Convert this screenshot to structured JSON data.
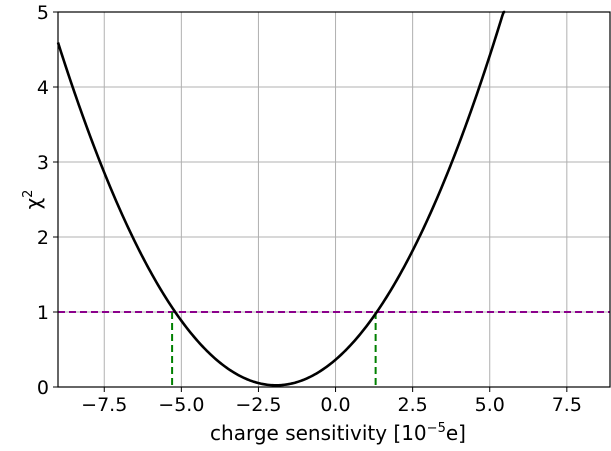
{
  "chart_data": {
    "type": "line",
    "xlabel": {
      "prefix": "charge sensitivity [10",
      "exponent": "−5",
      "suffix": "e]"
    },
    "ylabel": {
      "base": "χ",
      "exponent": "2"
    },
    "xlim": [
      -9.0,
      8.9
    ],
    "ylim": [
      0,
      5
    ],
    "x_ticks": [
      -7.5,
      -5.0,
      -2.5,
      0.0,
      2.5,
      5.0,
      7.5
    ],
    "x_tick_labels": [
      "−7.5",
      "−5.0",
      "−2.5",
      "0.0",
      "2.5",
      "5.0",
      "7.5"
    ],
    "y_ticks": [
      0,
      1,
      2,
      3,
      4,
      5
    ],
    "y_tick_labels": [
      "0",
      "1",
      "2",
      "3",
      "4",
      "5"
    ],
    "grid": true,
    "series": [
      {
        "style": "solid",
        "color": "#000000",
        "x": [
          -9.0,
          -8.0,
          -7.0,
          -6.0,
          -5.3,
          -5.0,
          -4.0,
          -3.0,
          -2.0,
          -1.0,
          0.0,
          1.0,
          1.3,
          2.0,
          3.0,
          4.0,
          5.0,
          5.5
        ],
        "y": [
          4.45,
          3.45,
          2.55,
          1.65,
          1.0,
          0.8,
          0.4,
          0.1,
          0.0,
          0.07,
          0.3,
          0.75,
          1.0,
          1.5,
          2.35,
          3.3,
          4.4,
          5.0
        ]
      }
    ],
    "hlines": [
      {
        "y": 1,
        "style": "dashed",
        "color": "#8b008b"
      }
    ],
    "vlines": [
      {
        "x": -5.3,
        "y_top": 1,
        "style": "dashed",
        "color": "#008000"
      },
      {
        "x": 1.3,
        "y_top": 1,
        "style": "dashed",
        "color": "#008000"
      }
    ]
  }
}
